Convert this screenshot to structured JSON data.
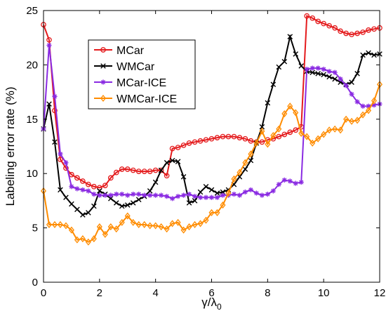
{
  "chart_data": {
    "type": "line",
    "title": "",
    "xlabel": "γ/λ",
    "xlabel_sub": "0",
    "ylabel": "Labeling error rate (%)",
    "xlim": [
      0,
      12
    ],
    "ylim": [
      0,
      25
    ],
    "xticks": [
      "0",
      "2",
      "4",
      "6",
      "8",
      "10",
      "12"
    ],
    "yticks": [
      "0",
      "5",
      "10",
      "15",
      "20",
      "25"
    ],
    "grid": false,
    "legend_position": "top-left",
    "series": [
      {
        "name": "MCar",
        "color": "#e41a1c",
        "marker": "circle",
        "x": [
          0,
          0.2,
          0.4,
          0.6,
          0.8,
          1.0,
          1.2,
          1.4,
          1.6,
          1.8,
          2.0,
          2.2,
          2.4,
          2.6,
          2.8,
          3.0,
          3.2,
          3.4,
          3.6,
          3.8,
          4.0,
          4.2,
          4.4,
          4.6,
          4.8,
          5.0,
          5.2,
          5.4,
          5.6,
          5.8,
          6.0,
          6.2,
          6.4,
          6.6,
          6.8,
          7.0,
          7.2,
          7.4,
          7.6,
          7.8,
          8.0,
          8.2,
          8.4,
          8.6,
          8.8,
          9.0,
          9.2,
          9.4,
          9.6,
          9.8,
          10.0,
          10.2,
          10.4,
          10.6,
          10.8,
          11.0,
          11.2,
          11.4,
          11.6,
          11.8,
          12.0
        ],
        "y": [
          23.7,
          22.3,
          15.8,
          11.3,
          10.5,
          9.9,
          9.6,
          9.3,
          9.0,
          8.8,
          8.7,
          8.9,
          9.6,
          10.1,
          10.4,
          10.4,
          10.3,
          10.2,
          10.2,
          10.2,
          10.3,
          10.3,
          9.8,
          12.3,
          12.4,
          12.6,
          12.8,
          12.9,
          13.0,
          13.1,
          13.2,
          13.3,
          13.4,
          13.4,
          13.4,
          13.3,
          13.2,
          13.0,
          12.9,
          12.9,
          13.1,
          13.2,
          13.4,
          13.6,
          13.8,
          14.0,
          14.3,
          24.5,
          24.3,
          24.0,
          23.8,
          23.6,
          23.4,
          23.1,
          22.9,
          22.8,
          22.9,
          23.0,
          23.2,
          23.3,
          23.4
        ]
      },
      {
        "name": "WMCar",
        "color": "#000000",
        "marker": "x",
        "x": [
          0,
          0.2,
          0.4,
          0.6,
          0.8,
          1.0,
          1.2,
          1.4,
          1.6,
          1.8,
          2.0,
          2.2,
          2.4,
          2.6,
          2.8,
          3.0,
          3.2,
          3.4,
          3.6,
          3.8,
          4.0,
          4.2,
          4.4,
          4.6,
          4.8,
          5.0,
          5.2,
          5.4,
          5.6,
          5.8,
          6.0,
          6.2,
          6.4,
          6.6,
          6.8,
          7.0,
          7.2,
          7.4,
          7.6,
          7.8,
          8.0,
          8.2,
          8.4,
          8.6,
          8.8,
          9.0,
          9.2,
          9.4,
          9.6,
          9.8,
          10.0,
          10.2,
          10.4,
          10.6,
          10.8,
          11.0,
          11.2,
          11.4,
          11.6,
          11.8,
          12.0
        ],
        "y": [
          14.1,
          16.4,
          12.9,
          8.5,
          7.8,
          7.2,
          6.7,
          6.2,
          6.4,
          7.0,
          8.4,
          8.1,
          7.7,
          7.3,
          7.0,
          7.1,
          7.3,
          7.6,
          7.9,
          8.4,
          9.2,
          10.3,
          11.0,
          11.2,
          11.1,
          9.7,
          7.3,
          7.5,
          8.3,
          8.8,
          8.5,
          8.2,
          8.3,
          8.5,
          9.0,
          9.7,
          10.4,
          11.2,
          12.8,
          14.3,
          16.5,
          18.2,
          19.8,
          20.3,
          22.6,
          21.0,
          19.9,
          19.4,
          19.3,
          19.2,
          19.1,
          18.9,
          18.7,
          18.4,
          18.2,
          18.4,
          19.2,
          20.9,
          21.1,
          20.9,
          21.0
        ]
      },
      {
        "name": "MCar-ICE",
        "color": "#8a2be2",
        "marker": "star",
        "x": [
          0,
          0.2,
          0.4,
          0.6,
          0.8,
          1.0,
          1.2,
          1.4,
          1.6,
          1.8,
          2.0,
          2.2,
          2.4,
          2.6,
          2.8,
          3.0,
          3.2,
          3.4,
          3.6,
          3.8,
          4.0,
          4.2,
          4.4,
          4.6,
          4.8,
          5.0,
          5.2,
          5.4,
          5.6,
          5.8,
          6.0,
          6.2,
          6.4,
          6.6,
          6.8,
          7.0,
          7.2,
          7.4,
          7.6,
          7.8,
          8.0,
          8.2,
          8.4,
          8.6,
          8.8,
          9.0,
          9.2,
          9.4,
          9.6,
          9.8,
          10.0,
          10.2,
          10.4,
          10.6,
          10.8,
          11.0,
          11.2,
          11.4,
          11.6,
          11.8,
          12.0
        ],
        "y": [
          14.1,
          21.8,
          17.1,
          11.8,
          11.0,
          8.8,
          8.6,
          8.5,
          8.4,
          8.1,
          8.0,
          8.0,
          8.0,
          8.1,
          8.1,
          8.0,
          8.1,
          8.1,
          8.0,
          8.0,
          8.0,
          8.0,
          7.9,
          7.7,
          7.9,
          8.0,
          8.1,
          7.9,
          7.8,
          7.8,
          7.8,
          7.8,
          8.0,
          8.0,
          8.1,
          8.0,
          8.3,
          8.5,
          8.2,
          8.0,
          8.1,
          8.4,
          9.0,
          9.4,
          9.3,
          9.1,
          9.2,
          19.6,
          19.7,
          19.7,
          19.6,
          19.4,
          19.3,
          18.7,
          18.1,
          17.3,
          16.6,
          16.2,
          16.2,
          16.3,
          16.4
        ]
      },
      {
        "name": "WMCar-ICE",
        "color": "#ff8c00",
        "marker": "diamond",
        "x": [
          0,
          0.2,
          0.4,
          0.6,
          0.8,
          1.0,
          1.2,
          1.4,
          1.6,
          1.8,
          2.0,
          2.2,
          2.4,
          2.6,
          2.8,
          3.0,
          3.2,
          3.4,
          3.6,
          3.8,
          4.0,
          4.2,
          4.4,
          4.6,
          4.8,
          5.0,
          5.2,
          5.4,
          5.6,
          5.8,
          6.0,
          6.2,
          6.4,
          6.6,
          6.8,
          7.0,
          7.2,
          7.4,
          7.6,
          7.8,
          8.0,
          8.2,
          8.4,
          8.6,
          8.8,
          9.0,
          9.2,
          9.4,
          9.6,
          9.8,
          10.0,
          10.2,
          10.4,
          10.6,
          10.8,
          11.0,
          11.2,
          11.4,
          11.6,
          11.8,
          12.0
        ],
        "y": [
          8.4,
          5.3,
          5.3,
          5.3,
          5.2,
          4.8,
          3.9,
          4.0,
          3.7,
          4.0,
          5.1,
          4.4,
          5.1,
          4.9,
          5.5,
          6.1,
          5.5,
          5.3,
          5.3,
          5.2,
          5.2,
          5.1,
          4.9,
          5.4,
          5.5,
          4.8,
          5.1,
          5.3,
          5.4,
          5.7,
          6.4,
          6.4,
          7.1,
          8.2,
          9.5,
          10.1,
          11.0,
          11.8,
          12.8,
          13.9,
          12.7,
          13.5,
          14.1,
          15.5,
          16.2,
          15.6,
          13.7,
          13.4,
          12.8,
          13.2,
          13.6,
          14.0,
          14.1,
          14.0,
          15.0,
          14.8,
          14.9,
          15.4,
          15.8,
          16.7,
          18.2
        ]
      }
    ]
  }
}
